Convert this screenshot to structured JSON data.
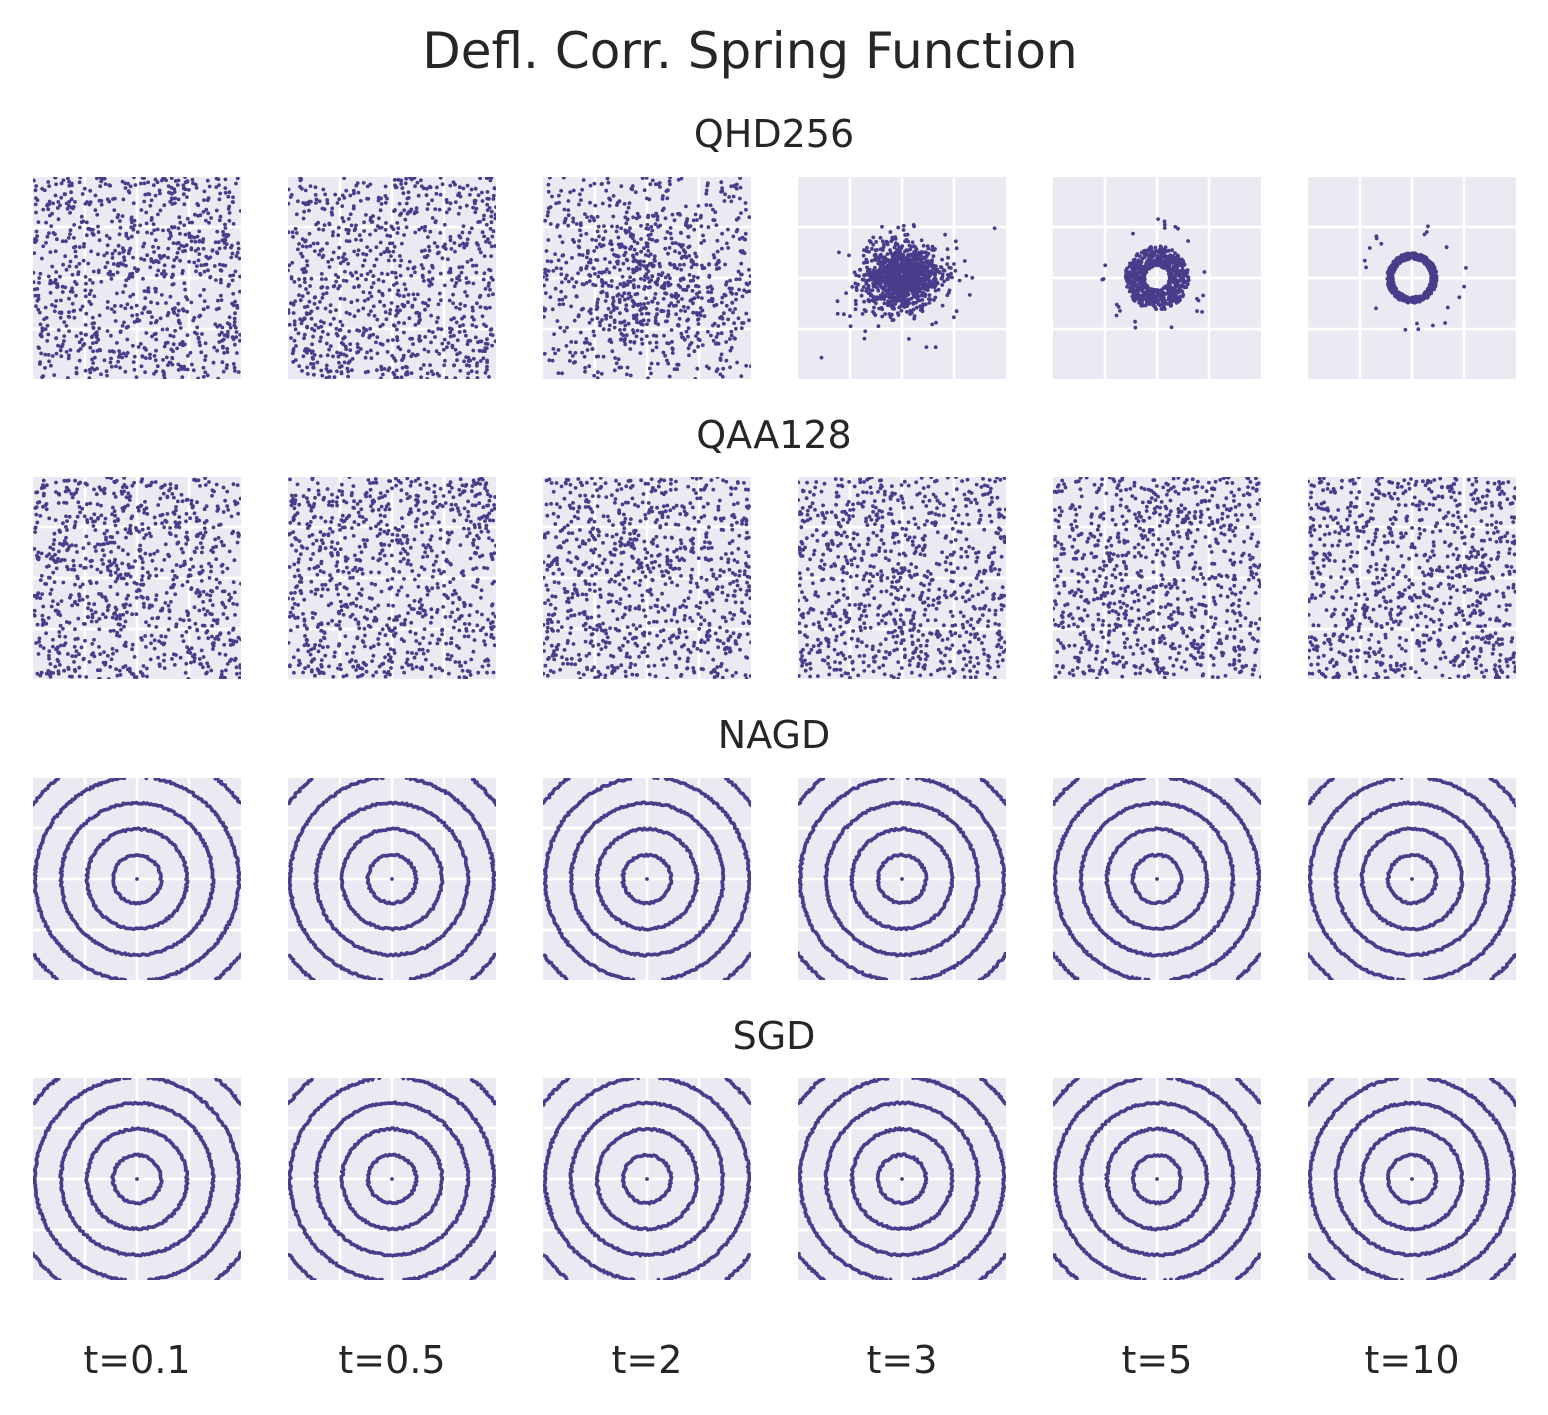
{
  "chart_data": {
    "type": "scatter",
    "title": "Defl. Corr. Spring Function",
    "colors": {
      "points": "#483d8b",
      "panel_background": "#eaeaf2",
      "grid": "#ffffff"
    },
    "columns": [
      "t=0.1",
      "t=0.5",
      "t=2",
      "t=3",
      "t=5",
      "t=10"
    ],
    "grid": true,
    "rows": [
      {
        "name": "QHD256",
        "panels": [
          {
            "t": "t=0.1",
            "pattern": "uniform"
          },
          {
            "t": "t=0.5",
            "pattern": "uniform"
          },
          {
            "t": "t=2",
            "pattern": "central-concentration"
          },
          {
            "t": "t=3",
            "pattern": "gaussian-blob"
          },
          {
            "t": "t=5",
            "pattern": "ring-small"
          },
          {
            "t": "t=10",
            "pattern": "ring"
          }
        ]
      },
      {
        "name": "QAA128",
        "panels": [
          {
            "t": "t=0.1",
            "pattern": "uniform"
          },
          {
            "t": "t=0.5",
            "pattern": "uniform"
          },
          {
            "t": "t=2",
            "pattern": "uniform"
          },
          {
            "t": "t=3",
            "pattern": "uniform"
          },
          {
            "t": "t=5",
            "pattern": "uniform"
          },
          {
            "t": "t=10",
            "pattern": "uniform"
          }
        ]
      },
      {
        "name": "NAGD",
        "panels": [
          {
            "t": "t=0.1",
            "pattern": "concentric-rings"
          },
          {
            "t": "t=0.5",
            "pattern": "concentric-rings"
          },
          {
            "t": "t=2",
            "pattern": "concentric-rings"
          },
          {
            "t": "t=3",
            "pattern": "concentric-rings"
          },
          {
            "t": "t=5",
            "pattern": "concentric-rings"
          },
          {
            "t": "t=10",
            "pattern": "concentric-rings"
          }
        ]
      },
      {
        "name": "SGD",
        "panels": [
          {
            "t": "t=0.1",
            "pattern": "concentric-rings"
          },
          {
            "t": "t=0.5",
            "pattern": "concentric-rings"
          },
          {
            "t": "t=2",
            "pattern": "concentric-rings"
          },
          {
            "t": "t=3",
            "pattern": "concentric-rings"
          },
          {
            "t": "t=5",
            "pattern": "concentric-rings"
          },
          {
            "t": "t=10",
            "pattern": "concentric-rings"
          }
        ]
      }
    ]
  }
}
